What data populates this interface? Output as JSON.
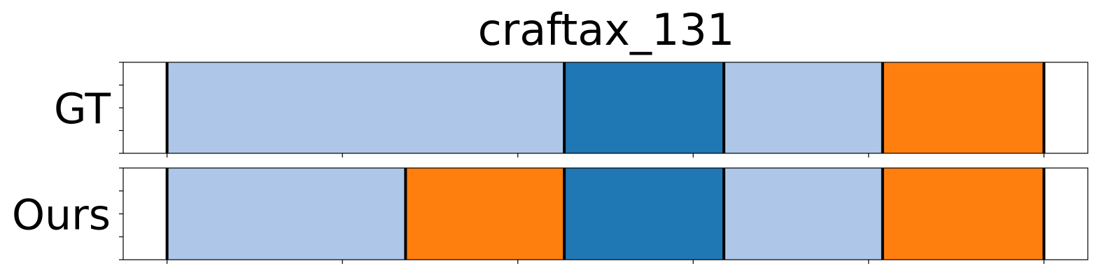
{
  "chart_data": {
    "type": "segmentation-timeline",
    "title": "craftax_131",
    "xlim": [
      0,
      11
    ],
    "rows": [
      {
        "label": "GT",
        "segments": [
          {
            "start": 0.5,
            "end": 5.03,
            "color": "#aec7e8"
          },
          {
            "start": 5.03,
            "end": 6.85,
            "color": "#1f77b4"
          },
          {
            "start": 6.85,
            "end": 8.66,
            "color": "#aec7e8"
          },
          {
            "start": 8.66,
            "end": 10.5,
            "color": "#ff7f0e"
          }
        ]
      },
      {
        "label": "Ours",
        "segments": [
          {
            "start": 0.5,
            "end": 3.22,
            "color": "#aec7e8"
          },
          {
            "start": 3.22,
            "end": 5.03,
            "color": "#ff7f0e"
          },
          {
            "start": 5.03,
            "end": 6.85,
            "color": "#1f77b4"
          },
          {
            "start": 6.85,
            "end": 8.66,
            "color": "#aec7e8"
          },
          {
            "start": 8.66,
            "end": 10.5,
            "color": "#ff7f0e"
          }
        ]
      }
    ],
    "x_ticks": [
      0.5,
      2.5,
      4.5,
      6.5,
      8.5,
      10.5
    ],
    "y_ticks": [
      0,
      0.25,
      0.5,
      0.75,
      1
    ],
    "boundary_color": "#000000",
    "grid": false,
    "legend": "none"
  }
}
